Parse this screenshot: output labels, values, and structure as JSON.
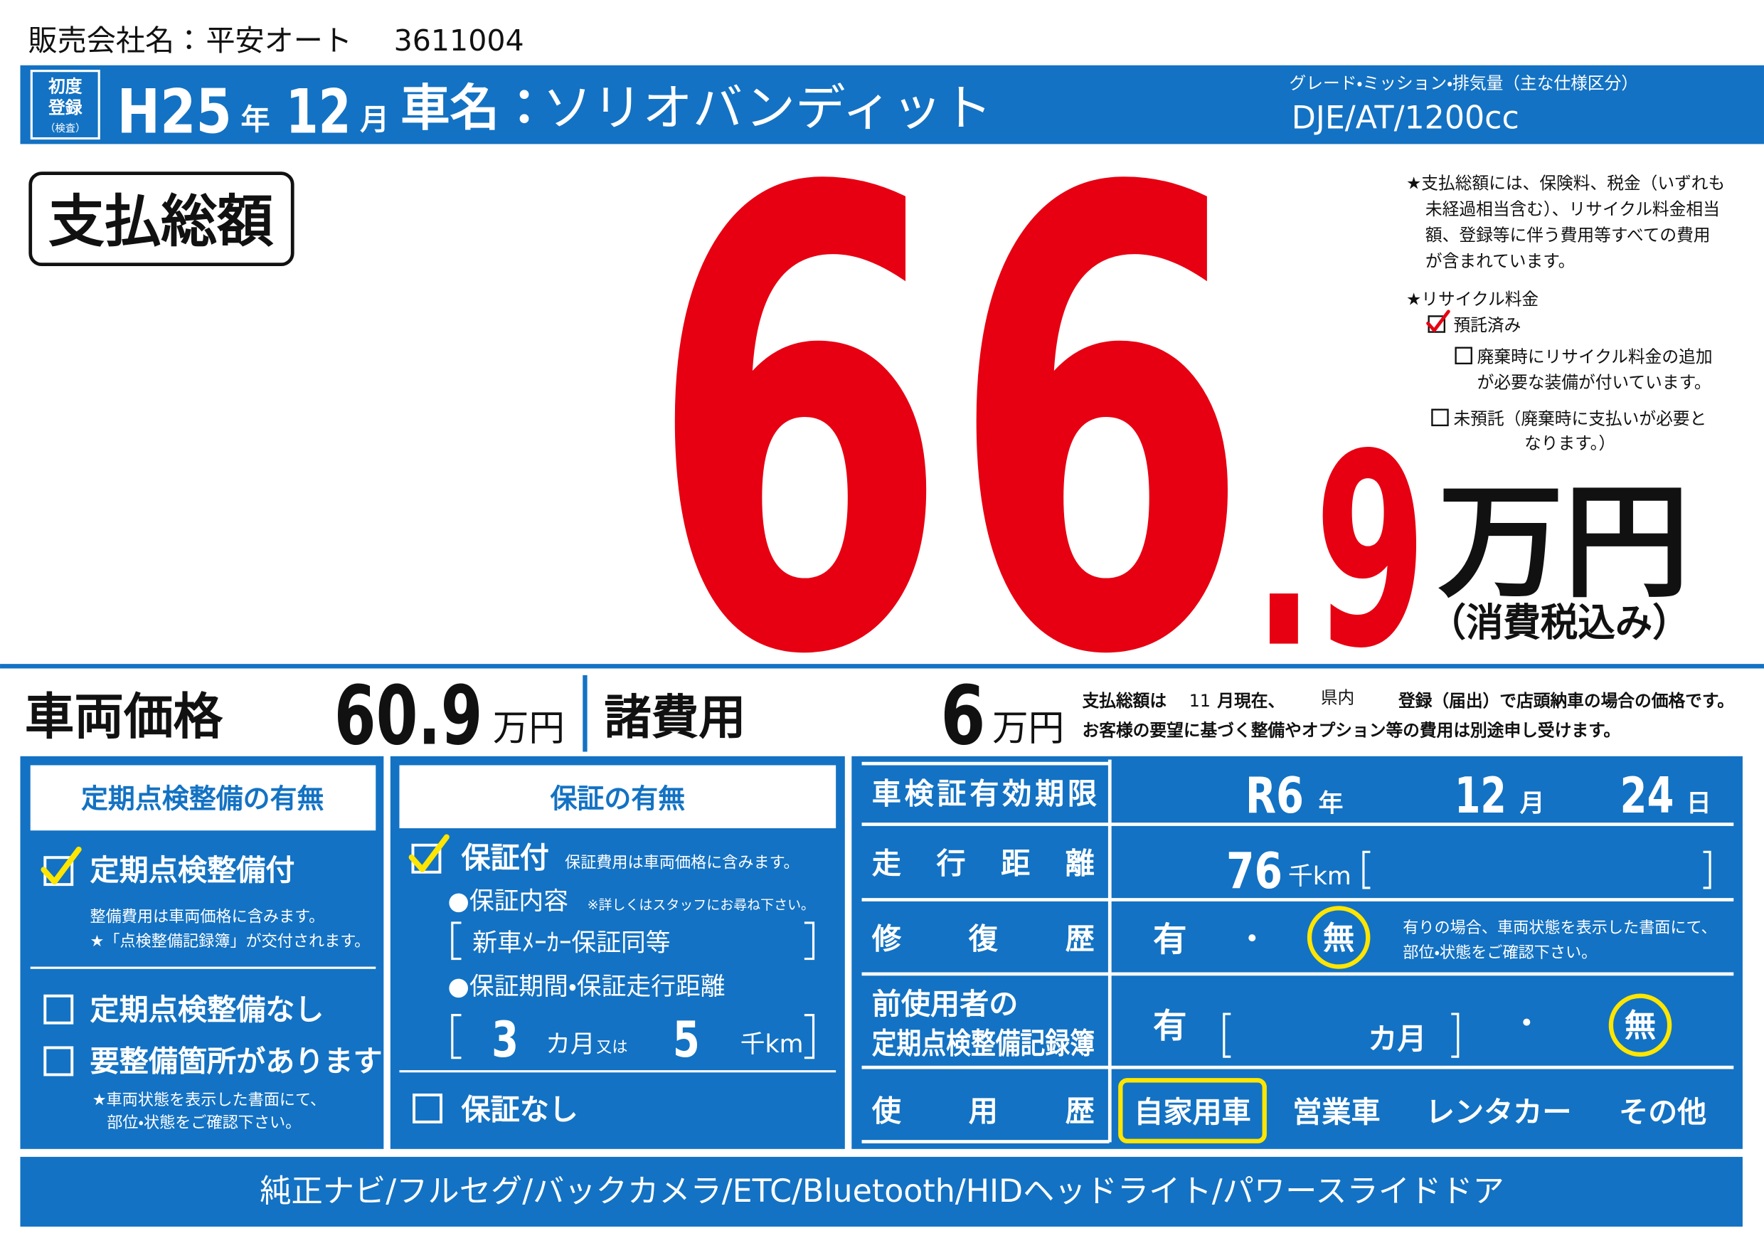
{
  "header": {
    "company_label": "販売会社名：",
    "company_name": "平安オート",
    "dealer_code": "3611004"
  },
  "title_bar": {
    "first_registration_label": [
      "初度",
      "登録",
      "（検査）"
    ],
    "era_year": "H25",
    "year_unit": "年",
    "month": "12",
    "month_unit": "月",
    "car_name_label": "車名：",
    "car_name": "ソリオバンディット",
    "grade_label": "グレード・ミッション・排気量（主な仕様区分）",
    "grade": "DJE/AT/1200cc"
  },
  "price": {
    "label": "支払総額",
    "integer": "66",
    "decimal": ".9",
    "unit": "万円",
    "tax_note": "（消費税込み）"
  },
  "notes": {
    "total_note": [
      "★支払総額には、保険料、税金（いずれも",
      "未経過相当含む）、リサイクル料金相当",
      "額、登録等に伴う費用等すべての費用",
      "が含まれています。"
    ],
    "recycle_title": "★リサイクル料金",
    "recycle_options": [
      {
        "label": [
          "預託済み"
        ],
        "checked": true
      },
      {
        "label": [
          "廃棄時にリサイクル料金の追加",
          "が必要な装備が付いています。"
        ],
        "checked": false
      },
      {
        "label": [
          "未預託（廃棄時に支払いが必要と",
          "なります。）"
        ],
        "checked": false
      }
    ]
  },
  "breakdown": {
    "vehicle_price_label": "車両価格",
    "vehicle_price": "60.9",
    "vehicle_price_unit": "万円",
    "fees_label": "諸費用",
    "fees": "6",
    "fees_unit": "万円",
    "note_line1": [
      "支払総額は",
      "11",
      "月現在、",
      "県内",
      "登録（届出）で店頭納車の場合の価格です。"
    ],
    "note_line2": "お客様の要望に基づく整備やオプション等の費用は別途申し受けます。"
  },
  "inspection": {
    "title": "定期点検整備の有無",
    "options": [
      {
        "label": "定期点検整備付",
        "checked": true,
        "notes": [
          "整備費用は車両価格に含みます。",
          "★「点検整備記録簿」が交付されます。"
        ]
      },
      {
        "label": "定期点検整備なし",
        "checked": false
      },
      {
        "label": "要整備箇所があります",
        "checked": false,
        "notes": [
          "★車両状態を表示した書面にて、",
          "部位・状態をご確認下さい。"
        ]
      }
    ]
  },
  "warranty": {
    "title": "保証の有無",
    "with": {
      "label": "保証付",
      "checked": true,
      "note": "保証費用は車両価格に含みます。"
    },
    "content_label": "●保証内容",
    "content_note": "※詳しくはスタッフにお尋ね下さい。",
    "content": "新車ﾒｰｶｰ保証同等",
    "period_label": "●保証期間・保証走行距離",
    "period_months": "3",
    "months_unit": "カ月",
    "or": "又は",
    "distance": "5",
    "distance_unit": "千km",
    "without": {
      "label": "保証なし",
      "checked": false
    }
  },
  "vehicle_info": {
    "inspection_expiry": {
      "label": "車検証有効期限",
      "era_year": "R6",
      "year_unit": "年",
      "month": "12",
      "month_unit": "月",
      "day": "24",
      "day_unit": "日"
    },
    "mileage": {
      "label": "走行距離",
      "value": "76",
      "unit": "千km"
    },
    "repair_history": {
      "label": "修復歴",
      "yes": "有",
      "separator": "・",
      "no": "無",
      "selected": "no",
      "note": [
        "有りの場合、車両状態を表示した書面にて、",
        "部位・状態をご確認下さい。"
      ]
    },
    "maintenance_record": {
      "label": [
        "前使用者の",
        "定期点検整備記録簿"
      ],
      "yes": "有",
      "months_unit": "カ月",
      "separator": "・",
      "no": "無",
      "selected": "no"
    },
    "usage_history": {
      "label": "使用歴",
      "options": [
        "自家用車",
        "営業車",
        "レンタカー",
        "その他"
      ],
      "selected": 0
    }
  },
  "footer": {
    "equipment": "純正ナビ/フルセグ/バックカメラ/ETC/Bluetooth/HIDヘッドライト/パワースライドドア"
  }
}
